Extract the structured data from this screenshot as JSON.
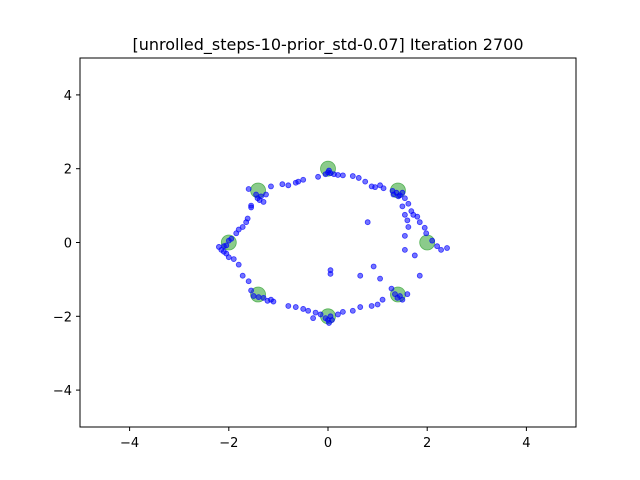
{
  "chart_data": {
    "type": "scatter",
    "title": "[unrolled_steps-10-prior_std-0.07] Iteration 2700",
    "xlabel": "",
    "ylabel": "",
    "xlim": [
      -5,
      5
    ],
    "ylim": [
      -5,
      5
    ],
    "xticks": [
      -4,
      -2,
      0,
      2,
      4
    ],
    "yticks": [
      -4,
      -2,
      0,
      2,
      4
    ],
    "grid": false,
    "series": [
      {
        "marker": "large circle",
        "color": "#2ca02c",
        "opacity": 0.55,
        "points": [
          [
            2.0,
            0.0
          ],
          [
            1.41,
            1.41
          ],
          [
            0.0,
            2.0
          ],
          [
            -1.41,
            1.41
          ],
          [
            -2.0,
            0.0
          ],
          [
            -1.41,
            -1.41
          ],
          [
            0.0,
            -2.0
          ],
          [
            1.41,
            -1.41
          ]
        ]
      },
      {
        "marker": "small circle",
        "color": "#0000ff",
        "opacity": 0.55,
        "points": [
          [
            0.02,
            1.95
          ],
          [
            0.0,
            1.9
          ],
          [
            -0.05,
            1.85
          ],
          [
            0.05,
            1.88
          ],
          [
            0.12,
            1.85
          ],
          [
            0.2,
            1.83
          ],
          [
            0.3,
            1.82
          ],
          [
            -0.2,
            1.78
          ],
          [
            -0.5,
            1.7
          ],
          [
            -0.65,
            1.62
          ],
          [
            -0.8,
            1.55
          ],
          [
            -0.92,
            1.58
          ],
          [
            0.5,
            1.8
          ],
          [
            0.62,
            1.75
          ],
          [
            0.75,
            1.65
          ],
          [
            0.88,
            1.52
          ],
          [
            0.95,
            1.5
          ],
          [
            1.05,
            1.55
          ],
          [
            1.12,
            1.47
          ],
          [
            1.38,
            1.35
          ],
          [
            1.32,
            1.3
          ],
          [
            1.45,
            1.28
          ],
          [
            1.5,
            1.35
          ],
          [
            1.42,
            1.25
          ],
          [
            1.3,
            1.4
          ],
          [
            1.55,
            1.2
          ],
          [
            1.62,
            1.05
          ],
          [
            1.5,
            0.98
          ],
          [
            1.68,
            0.85
          ],
          [
            1.72,
            0.75
          ],
          [
            1.8,
            0.7
          ],
          [
            1.55,
            0.75
          ],
          [
            1.6,
            0.6
          ],
          [
            1.85,
            0.55
          ],
          [
            1.95,
            0.4
          ],
          [
            1.98,
            0.25
          ],
          [
            1.62,
            0.42
          ],
          [
            1.55,
            0.18
          ],
          [
            2.1,
            0.05
          ],
          [
            2.2,
            -0.1
          ],
          [
            2.4,
            -0.15
          ],
          [
            2.28,
            -0.2
          ],
          [
            1.85,
            -0.9
          ],
          [
            1.28,
            -1.25
          ],
          [
            1.4,
            -1.5
          ],
          [
            1.45,
            -1.45
          ],
          [
            1.5,
            -1.55
          ],
          [
            1.35,
            -1.4
          ],
          [
            1.6,
            -1.4
          ],
          [
            1.1,
            -1.55
          ],
          [
            1.0,
            -1.68
          ],
          [
            0.88,
            -1.72
          ],
          [
            0.65,
            -1.75
          ],
          [
            0.5,
            -1.85
          ],
          [
            0.3,
            -1.88
          ],
          [
            0.2,
            -1.95
          ],
          [
            0.05,
            -2.0
          ],
          [
            0.0,
            -2.1
          ],
          [
            0.02,
            -2.18
          ],
          [
            -0.05,
            -2.05
          ],
          [
            0.08,
            -2.1
          ],
          [
            -0.15,
            -1.95
          ],
          [
            -0.25,
            -1.9
          ],
          [
            -0.3,
            -2.05
          ],
          [
            -0.4,
            -1.85
          ],
          [
            -0.5,
            -1.8
          ],
          [
            -0.65,
            -1.75
          ],
          [
            -0.8,
            -1.72
          ],
          [
            -1.1,
            -1.6
          ],
          [
            -1.15,
            -1.55
          ],
          [
            -1.22,
            -1.58
          ],
          [
            -1.3,
            -1.5
          ],
          [
            -1.4,
            -1.48
          ],
          [
            -1.5,
            -1.45
          ],
          [
            -1.55,
            -1.3
          ],
          [
            -1.6,
            -1.05
          ],
          [
            -1.72,
            -0.9
          ],
          [
            -1.8,
            -0.6
          ],
          [
            -1.9,
            -0.45
          ],
          [
            -2.0,
            -0.4
          ],
          [
            -2.05,
            -0.3
          ],
          [
            -2.1,
            -0.25
          ],
          [
            -2.15,
            -0.2
          ],
          [
            -2.2,
            -0.12
          ],
          [
            -2.1,
            -0.1
          ],
          [
            -2.05,
            -0.08
          ],
          [
            -2.0,
            0.05
          ],
          [
            -1.95,
            0.1
          ],
          [
            -1.85,
            0.25
          ],
          [
            -1.8,
            0.35
          ],
          [
            -1.72,
            0.42
          ],
          [
            -1.65,
            0.55
          ],
          [
            -1.62,
            0.65
          ],
          [
            -1.55,
            0.95
          ],
          [
            -1.55,
            1.0
          ],
          [
            -1.6,
            1.45
          ],
          [
            -1.45,
            1.3
          ],
          [
            -1.42,
            1.2
          ],
          [
            -1.38,
            1.15
          ],
          [
            -1.35,
            1.25
          ],
          [
            -1.3,
            1.1
          ],
          [
            -1.25,
            1.3
          ],
          [
            -1.15,
            1.52
          ],
          [
            -0.6,
            1.65
          ],
          [
            0.05,
            -0.75
          ],
          [
            0.05,
            -0.85
          ],
          [
            0.65,
            -0.9
          ],
          [
            1.05,
            -0.98
          ],
          [
            0.8,
            0.55
          ],
          [
            1.55,
            -0.2
          ],
          [
            1.75,
            -0.35
          ],
          [
            0.92,
            -0.65
          ]
        ]
      }
    ]
  }
}
